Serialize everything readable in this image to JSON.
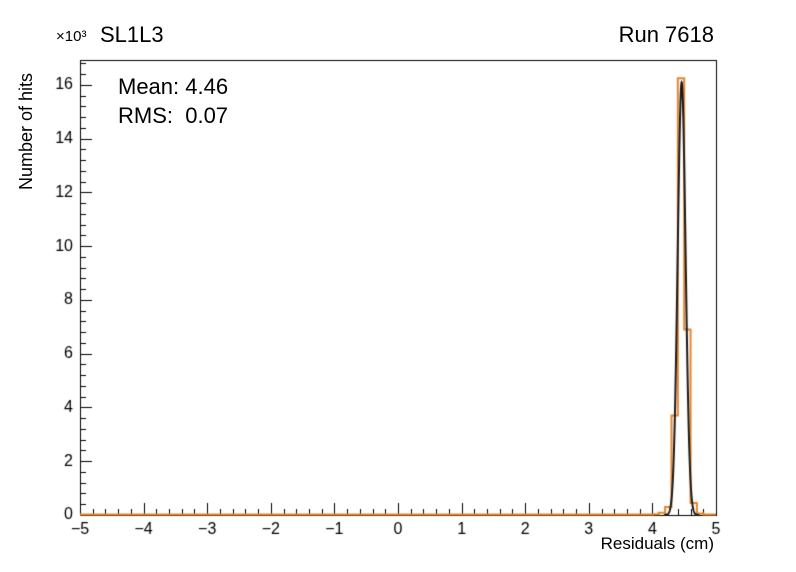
{
  "page": {
    "background": "#ffffff"
  },
  "header": {
    "title": "SL1L3",
    "run_label": "Run 7618"
  },
  "stats": {
    "mean_label": "Mean: 4.46",
    "rms_label": "RMS:  0.07"
  },
  "chart_data": {
    "type": "line",
    "title": "SL1L3",
    "annotation_right": "Run 7618",
    "xlabel": "Residuals (cm)",
    "ylabel": "Number of hits",
    "y_axis_multiplier": "×10³",
    "xlim": [
      -5,
      5
    ],
    "ylim": [
      0,
      16.93
    ],
    "x_major_ticks": [
      -5,
      -4,
      -3,
      -2,
      -1,
      0,
      1,
      2,
      3,
      4,
      5
    ],
    "x_minor_step": 0.2,
    "y_major_ticks": [
      0,
      2,
      4,
      6,
      8,
      10,
      12,
      14,
      16
    ],
    "y_minor_step": 0.4,
    "grid": false,
    "frame_color": "#000000",
    "tick_label_color": "#000000",
    "stats": {
      "mean": 4.46,
      "rms": 0.07
    },
    "series": [
      {
        "name": "residuals-histogram",
        "style": "step-histogram",
        "color": "#e8862d",
        "line_width": 2,
        "bin_width": 0.1,
        "value_units": "10^3 hits",
        "bins": [
          {
            "x_low": 4.0,
            "value": 0.03
          },
          {
            "x_low": 4.1,
            "value": 0.08
          },
          {
            "x_low": 4.2,
            "value": 0.3
          },
          {
            "x_low": 4.3,
            "value": 3.7
          },
          {
            "x_low": 4.4,
            "value": 16.25
          },
          {
            "x_low": 4.5,
            "value": 6.9
          },
          {
            "x_low": 4.6,
            "value": 0.45
          },
          {
            "x_low": 4.7,
            "value": 0.06
          }
        ]
      },
      {
        "name": "gaussian-fit",
        "style": "gaussian",
        "color": "#1a1a1a",
        "line_width": 2,
        "mean": 4.46,
        "sigma": 0.062,
        "amplitude": 16.1
      }
    ]
  }
}
